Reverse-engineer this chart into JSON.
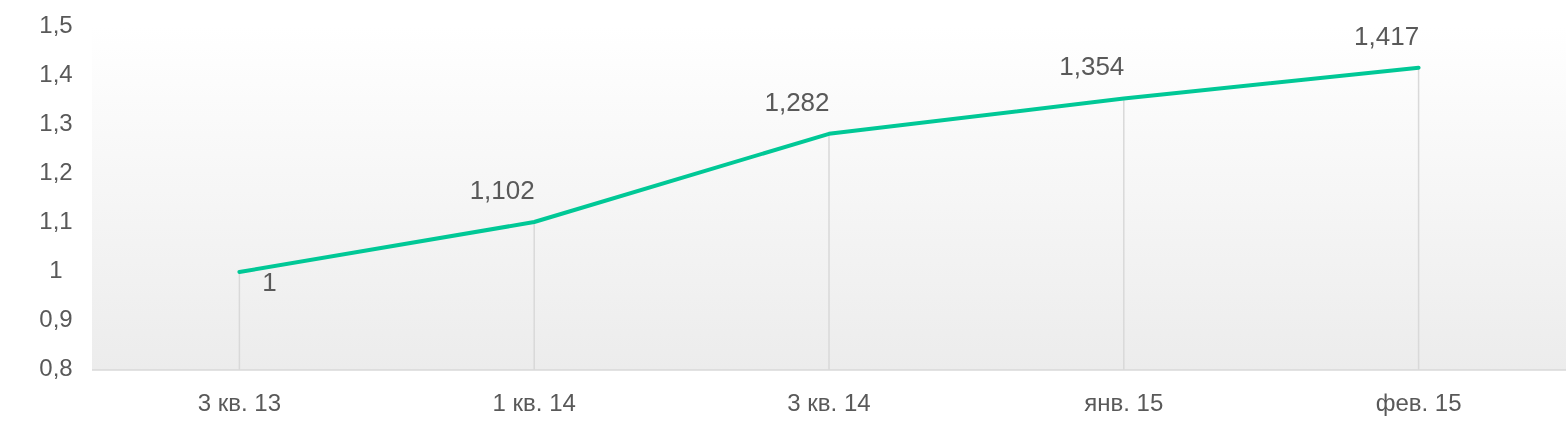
{
  "chart_data": {
    "type": "line",
    "categories": [
      "3 кв. 13",
      "1 кв. 14",
      "3 кв. 14",
      "янв. 15",
      "фев. 15"
    ],
    "series": [
      {
        "color": "#00c896",
        "values": [
          1,
          1.102,
          1.282,
          1.354,
          1.417
        ]
      }
    ],
    "ylim": [
      0.8,
      1.5
    ],
    "yticks": [
      {
        "value": 0.8,
        "label": "0,8"
      },
      {
        "value": 0.9,
        "label": "0,9"
      },
      {
        "value": 1,
        "label": "1"
      },
      {
        "value": 1.1,
        "label": "1,1"
      },
      {
        "value": 1.2,
        "label": "1,2"
      },
      {
        "value": 1.3,
        "label": "1,3"
      },
      {
        "value": 1.4,
        "label": "1,4"
      },
      {
        "value": 1.5,
        "label": "1,5"
      }
    ],
    "value_labels": [
      "1",
      "1,102",
      "1,282",
      "1,354",
      "1,417"
    ],
    "grid": "x",
    "marker": "none",
    "line_style": "solid"
  }
}
